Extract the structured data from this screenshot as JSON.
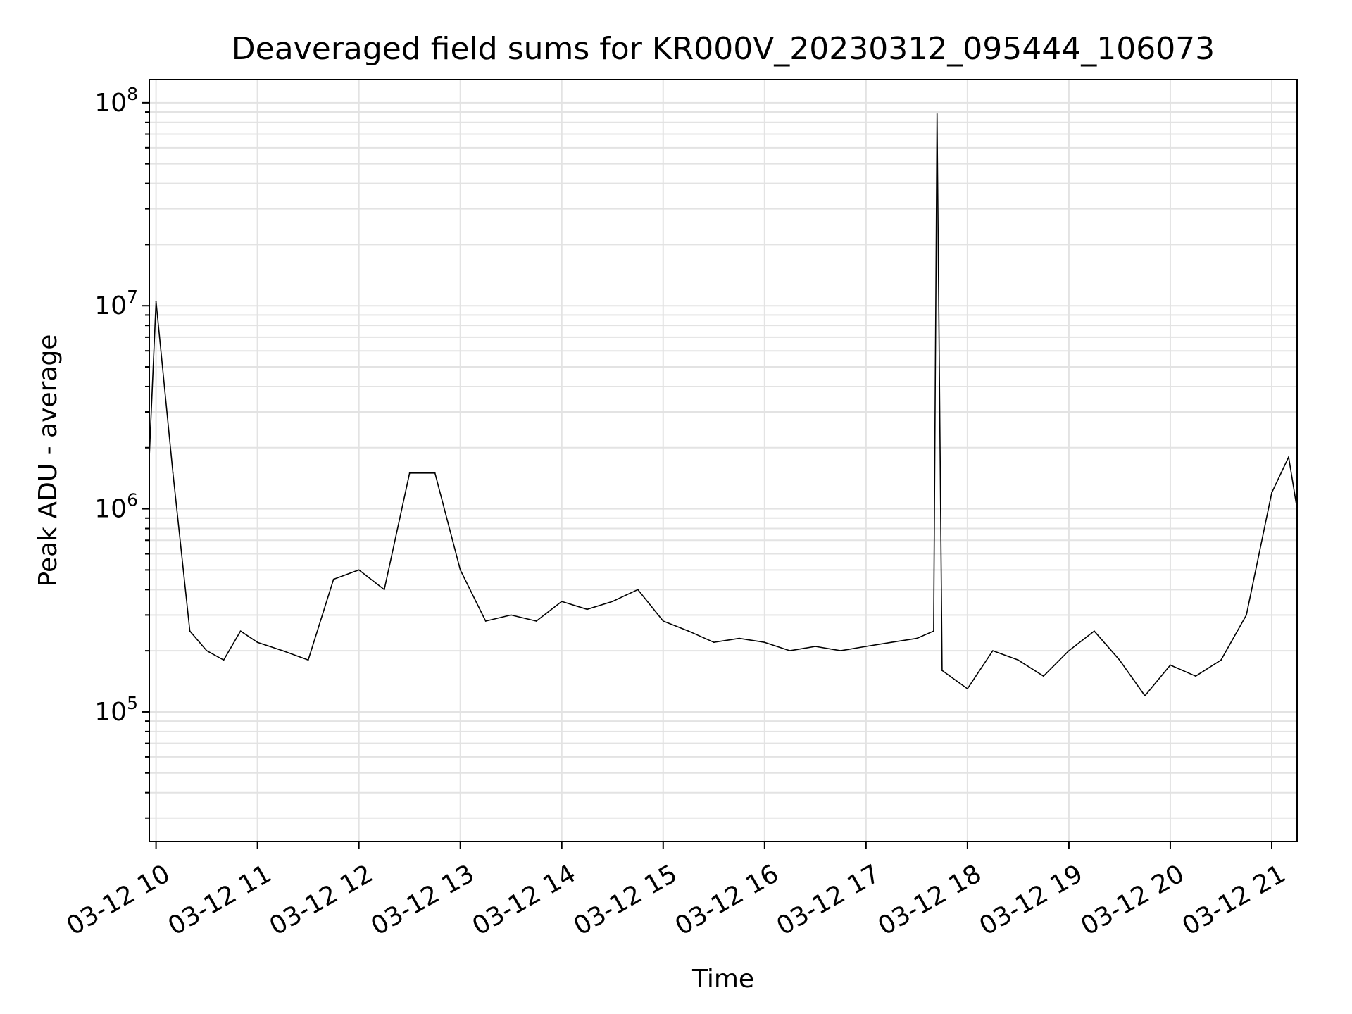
{
  "chart_data": {
    "type": "line",
    "title": "Deaveraged field sums for KR000V_20230312_095444_106073",
    "xlabel": "Time",
    "ylabel": "Peak ADU - average",
    "yscale": "log",
    "ylim": [
      23000,
      130000000
    ],
    "xlim": [
      "03-12 09:56",
      "03-12 21:15"
    ],
    "grid": "both (major and minor)",
    "line_color": "#000000",
    "x_ticks": [
      "03-12 10",
      "03-12 11",
      "03-12 12",
      "03-12 13",
      "03-12 14",
      "03-12 15",
      "03-12 16",
      "03-12 17",
      "03-12 18",
      "03-12 19",
      "03-12 20",
      "03-12 21"
    ],
    "y_ticks": [
      {
        "base": "10",
        "exp": "5",
        "value": 100000
      },
      {
        "base": "10",
        "exp": "6",
        "value": 1000000
      },
      {
        "base": "10",
        "exp": "7",
        "value": 10000000
      },
      {
        "base": "10",
        "exp": "8",
        "value": 100000000
      }
    ],
    "series": [
      {
        "x": [
          "03-12 09:56",
          "03-12 10:00",
          "03-12 10:10",
          "03-12 10:20",
          "03-12 10:30",
          "03-12 10:40",
          "03-12 10:50",
          "03-12 11:00",
          "03-12 11:15",
          "03-12 11:30",
          "03-12 11:45",
          "03-12 12:00",
          "03-12 12:15",
          "03-12 12:30",
          "03-12 12:45",
          "03-12 13:00",
          "03-12 13:15",
          "03-12 13:30",
          "03-12 13:45",
          "03-12 14:00",
          "03-12 14:15",
          "03-12 14:30",
          "03-12 14:45",
          "03-12 15:00",
          "03-12 15:15",
          "03-12 15:30",
          "03-12 15:45",
          "03-12 16:00",
          "03-12 16:15",
          "03-12 16:30",
          "03-12 16:45",
          "03-12 17:00",
          "03-12 17:15",
          "03-12 17:30",
          "03-12 17:40",
          "03-12 17:42",
          "03-12 17:45",
          "03-12 18:00",
          "03-12 18:15",
          "03-12 18:30",
          "03-12 18:45",
          "03-12 19:00",
          "03-12 19:15",
          "03-12 19:30",
          "03-12 19:45",
          "03-12 20:00",
          "03-12 20:15",
          "03-12 20:30",
          "03-12 20:45",
          "03-12 21:00",
          "03-12 21:10",
          "03-12 21:15"
        ],
        "values": [
          1800000,
          10500000,
          1500000,
          250000,
          200000,
          180000,
          250000,
          220000,
          200000,
          180000,
          450000,
          500000,
          400000,
          1500000,
          1500000,
          500000,
          280000,
          300000,
          280000,
          350000,
          320000,
          350000,
          400000,
          280000,
          250000,
          220000,
          230000,
          220000,
          200000,
          210000,
          200000,
          210000,
          220000,
          230000,
          250000,
          88000000,
          160000,
          130000,
          200000,
          180000,
          150000,
          200000,
          250000,
          180000,
          120000,
          170000,
          150000,
          180000,
          300000,
          1200000,
          1800000,
          1000000
        ]
      }
    ]
  }
}
